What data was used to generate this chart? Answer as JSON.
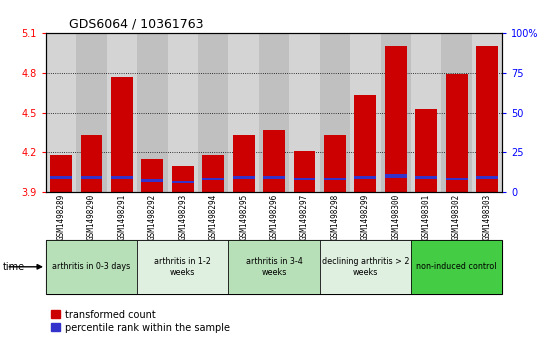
{
  "title": "GDS6064 / 10361763",
  "samples": [
    "GSM1498289",
    "GSM1498290",
    "GSM1498291",
    "GSM1498292",
    "GSM1498293",
    "GSM1498294",
    "GSM1498295",
    "GSM1498296",
    "GSM1498297",
    "GSM1498298",
    "GSM1498299",
    "GSM1498300",
    "GSM1498301",
    "GSM1498302",
    "GSM1498303"
  ],
  "transformed_count": [
    4.18,
    4.33,
    4.77,
    4.15,
    4.1,
    4.18,
    4.33,
    4.37,
    4.21,
    4.33,
    4.63,
    5.0,
    4.53,
    4.79,
    5.0
  ],
  "percentile_rank_bottom": [
    4.0,
    4.0,
    4.0,
    3.98,
    3.97,
    3.99,
    4.0,
    4.0,
    3.99,
    3.99,
    4.0,
    4.01,
    4.0,
    3.99,
    4.0
  ],
  "blue_bar_height": [
    0.022,
    0.022,
    0.022,
    0.018,
    0.015,
    0.018,
    0.022,
    0.022,
    0.018,
    0.018,
    0.022,
    0.026,
    0.022,
    0.018,
    0.022
  ],
  "base": 3.9,
  "ylim": [
    3.9,
    5.1
  ],
  "yticks": [
    3.9,
    4.2,
    4.5,
    4.8,
    5.1
  ],
  "right_yticks": [
    0,
    25,
    50,
    75,
    100
  ],
  "bar_color": "#cc0000",
  "blue_color": "#3333cc",
  "col_bg_light": "#d4d4d4",
  "col_bg_dark": "#c0c0c0",
  "plot_bg": "#ffffff",
  "groups": [
    {
      "label": "arthritis in 0-3 days",
      "start": 0,
      "end": 3,
      "color": "#b8e0b8"
    },
    {
      "label": "arthritis in 1-2\nweeks",
      "start": 3,
      "end": 6,
      "color": "#e0f0e0"
    },
    {
      "label": "arthritis in 3-4\nweeks",
      "start": 6,
      "end": 9,
      "color": "#b8e0b8"
    },
    {
      "label": "declining arthritis > 2\nweeks",
      "start": 9,
      "end": 12,
      "color": "#e0f0e0"
    },
    {
      "label": "non-induced control",
      "start": 12,
      "end": 15,
      "color": "#44cc44"
    }
  ],
  "legend_red": "transformed count",
  "legend_blue": "percentile rank within the sample"
}
